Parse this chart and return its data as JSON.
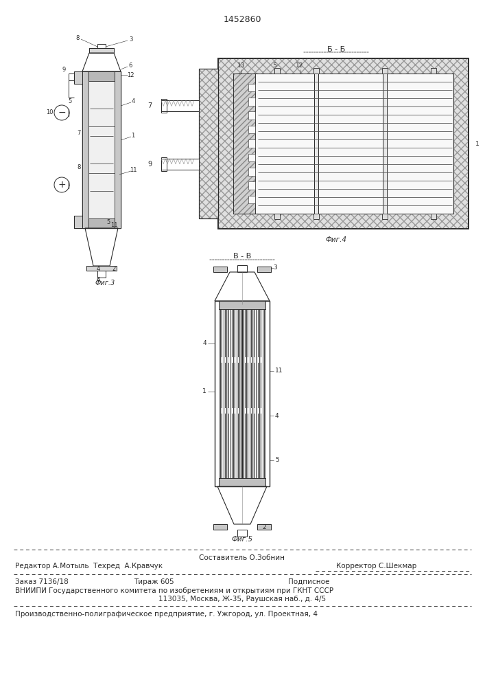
{
  "patent_number": "1452860",
  "bg_color": "#ffffff",
  "line_color": "#2a2a2a",
  "footer": {
    "line1_center": "Составитель О.Зобнин",
    "line2_left": "Редактор А.Мотыль  Техред  А.Кравчук",
    "line2_right": "Корректор С.Шекмар",
    "line3_left": "Заказ 7136/18",
    "line3_mid": "Тираж 605",
    "line3_right": "Подписное",
    "line4": "ВНИИПИ Государственного комитета по изобретениям и открытиям при ГКНТ СССР",
    "line5": "113035, Москва, Ж-35, Раушская наб., д. 4/5",
    "line6": "Производственно-полиграфическое предприятие, г. Ужгород, ул. Проектная, 4"
  }
}
